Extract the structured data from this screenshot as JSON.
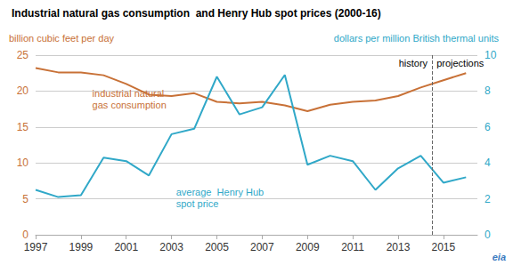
{
  "chart_data": {
    "type": "line",
    "title": "Industrial natural gas consumption  and Henry Hub spot prices (2000-16)",
    "ylabel": "billion cubic feet per day",
    "y2label": "dollars per million British thermal units",
    "x": [
      1997,
      1998,
      1999,
      2000,
      2001,
      2002,
      2003,
      2004,
      2005,
      2006,
      2007,
      2008,
      2009,
      2010,
      2011,
      2012,
      2013,
      2014,
      2015,
      2016
    ],
    "series": [
      {
        "color": "#c87137",
        "values": [
          23.2,
          22.6,
          22.6,
          22.2,
          21.0,
          19.5,
          19.3,
          19.7,
          18.5,
          18.3,
          18.5,
          18.0,
          17.2,
          18.1,
          18.5,
          18.7,
          19.3,
          20.5,
          21.5,
          22.5
        ]
      },
      {
        "color": "#30a8c8",
        "axis": "y2",
        "values": [
          2.5,
          2.1,
          2.2,
          4.3,
          4.1,
          3.3,
          5.6,
          5.9,
          8.8,
          6.7,
          7.1,
          8.9,
          3.9,
          4.4,
          4.1,
          2.5,
          3.7,
          4.4,
          2.9,
          3.2
        ]
      }
    ],
    "xlim": [
      1997,
      2016.5
    ],
    "xticks": [
      1997,
      1999,
      2001,
      2003,
      2005,
      2007,
      2009,
      2011,
      2013,
      2015
    ],
    "ylim": [
      0,
      25
    ],
    "yticks": [
      0,
      5,
      10,
      15,
      20,
      25
    ],
    "y2lim": [
      0,
      10
    ],
    "y2ticks": [
      0,
      2,
      4,
      6,
      8,
      10
    ],
    "grid": true,
    "annotations": [
      {
        "text": "industrial natural\ngas consumption",
        "x": 1999.5,
        "y": 20.5,
        "color": "#c87137"
      },
      {
        "text": "average  Henry Hub\nspot price",
        "x": 2003.2,
        "y": 6.8,
        "color": "#30a8c8"
      }
    ],
    "vline": {
      "x": 2014.5,
      "line_style": "dashed",
      "left_label": "history",
      "right_label": "projections"
    },
    "logo": "eia"
  }
}
